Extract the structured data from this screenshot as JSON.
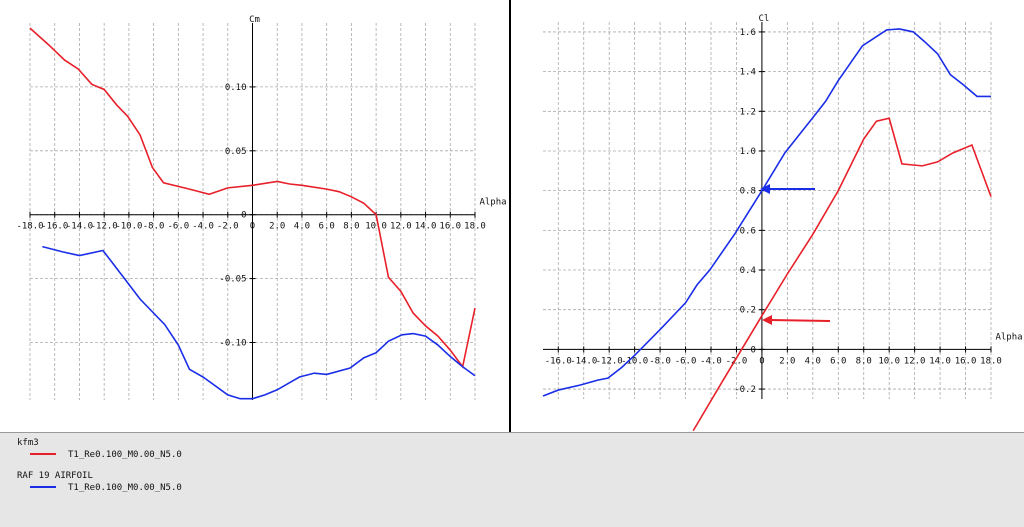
{
  "chart_data": [
    {
      "type": "line",
      "y_label": "Cm",
      "x_label": "Alpha",
      "xlim": [
        -18,
        18
      ],
      "ylim": [
        -0.145,
        0.15
      ],
      "grid": true,
      "xticks": [
        {
          "value": -18,
          "label": "-18.0"
        },
        {
          "value": -16,
          "label": "-16.0"
        },
        {
          "value": -14,
          "label": "-14.0"
        },
        {
          "value": -12,
          "label": "-12.0"
        },
        {
          "value": -10,
          "label": "-10.0"
        },
        {
          "value": -8,
          "label": "-8.0"
        },
        {
          "value": -6,
          "label": "-6.0"
        },
        {
          "value": -4,
          "label": "-4.0"
        },
        {
          "value": -2,
          "label": "-2.0"
        },
        0,
        {
          "value": 2,
          "label": "2.0"
        },
        {
          "value": 4,
          "label": "4.0"
        },
        {
          "value": 6,
          "label": "6.0"
        },
        {
          "value": 8,
          "label": "8.0"
        },
        {
          "value": 10,
          "label": "10.0"
        },
        {
          "value": 12,
          "label": "12.0"
        },
        {
          "value": 14,
          "label": "14.0"
        },
        {
          "value": 16,
          "label": "16.0"
        },
        {
          "value": 18,
          "label": "18.0"
        }
      ],
      "yticks": [
        {
          "value": 0.1,
          "label": "0.10"
        },
        0.05,
        0,
        -0.05,
        {
          "value": -0.1,
          "label": "-0.10"
        }
      ],
      "series": [
        {
          "name": "T1_Re0.100_M0.00_N5.0",
          "color": "#e8202a",
          "x": [
            -18,
            -16.5,
            -15.2,
            -14.1,
            -13,
            -12,
            -11,
            -10.1,
            -9.1,
            -8.1,
            -7.2,
            -5.1,
            -3.5,
            -2,
            0,
            2,
            3,
            4,
            6,
            7,
            8,
            9,
            10,
            11,
            12,
            13,
            14,
            15,
            16,
            17,
            18
          ],
          "values": [
            0.146,
            0.133,
            0.121,
            0.114,
            0.102,
            0.098,
            0.086,
            0.077,
            0.0625,
            0.037,
            0.025,
            0.02,
            0.016,
            0.021,
            0.023,
            0.026,
            0.024,
            0.023,
            0.02,
            0.018,
            0.014,
            0.009,
            0,
            -0.049,
            -0.06,
            -0.077,
            -0.087,
            -0.095,
            -0.106,
            -0.119,
            -0.073
          ]
        },
        {
          "name": "T1_Re0.100_M0.00_N5.0",
          "color": "#1a2ee8",
          "x": [
            -17,
            -15.4,
            -14,
            -12.1,
            -10.2,
            -9.1,
            -7.1,
            -6,
            -5.1,
            -4,
            -2,
            -1,
            0,
            1,
            2,
            3.8,
            5,
            6,
            7.9,
            9,
            10,
            11,
            12.1,
            13,
            14,
            15,
            16,
            17,
            18
          ],
          "values": [
            -0.025,
            -0.029,
            -0.032,
            -0.028,
            -0.052,
            -0.066,
            -0.086,
            -0.102,
            -0.121,
            -0.127,
            -0.141,
            -0.144,
            -0.144,
            -0.141,
            -0.137,
            -0.127,
            -0.124,
            -0.125,
            -0.12,
            -0.112,
            -0.108,
            -0.099,
            -0.094,
            -0.093,
            -0.095,
            -0.102,
            -0.111,
            -0.119,
            -0.126
          ]
        }
      ]
    },
    {
      "type": "line",
      "y_label": "Cl",
      "x_label": "Alpha",
      "xlim": [
        -17.2,
        18
      ],
      "ylim": [
        -0.25,
        1.65
      ],
      "grid": true,
      "xticks": [
        {
          "value": -16,
          "label": "-16.0"
        },
        {
          "value": -14,
          "label": "-14.0"
        },
        {
          "value": -12,
          "label": "-12.0"
        },
        {
          "value": -10,
          "label": "-10.0"
        },
        {
          "value": -8,
          "label": "-8.0"
        },
        {
          "value": -6,
          "label": "-6.0"
        },
        {
          "value": -4,
          "label": "-4.0"
        },
        {
          "value": -2,
          "label": "-2.0"
        },
        0,
        {
          "value": 2,
          "label": "2.0"
        },
        {
          "value": 4,
          "label": "4.0"
        },
        {
          "value": 6,
          "label": "6.0"
        },
        {
          "value": 8,
          "label": "8.0"
        },
        {
          "value": 10,
          "label": "10.0"
        },
        {
          "value": 12,
          "label": "12.0"
        },
        {
          "value": 14,
          "label": "14.0"
        },
        {
          "value": 16,
          "label": "16.0"
        },
        {
          "value": 18,
          "label": "18.0"
        }
      ],
      "yticks": [
        1.6,
        1.4,
        1.2,
        {
          "value": 1,
          "label": "1.0"
        },
        0.8,
        0.6,
        0.4,
        0.2,
        0,
        -0.2
      ],
      "series": [
        {
          "name": "T1_Re0.100_M0.00_N5.0",
          "color": "#e8202a",
          "x": [
            -5.4,
            -3,
            0,
            2,
            4,
            6,
            8,
            9,
            10,
            11,
            12.6,
            13.8,
            15,
            16.5,
            18
          ],
          "values": [
            -0.41,
            -0.15,
            0.17,
            0.38,
            0.58,
            0.8,
            1.06,
            1.15,
            1.165,
            0.935,
            0.925,
            0.945,
            0.99,
            1.03,
            0.77
          ]
        },
        {
          "name": "T1_Re0.100_M0.00_N5.0",
          "color": "#1a2ee8",
          "x": [
            -17.2,
            -16,
            -14.3,
            -12.9,
            -12.1,
            -11,
            -10,
            -8,
            -6,
            -5.1,
            -4.1,
            -2.1,
            0,
            1.8,
            3.9,
            5,
            6,
            7.9,
            9.8,
            10.8,
            11.9,
            12.8,
            13.8,
            14.8,
            15.8,
            16.9,
            18
          ],
          "values": [
            -0.235,
            -0.205,
            -0.18,
            -0.155,
            -0.145,
            -0.09,
            -0.03,
            0.1,
            0.235,
            0.325,
            0.4,
            0.585,
            0.8,
            0.99,
            1.16,
            1.25,
            1.355,
            1.53,
            1.61,
            1.615,
            1.6,
            1.55,
            1.49,
            1.385,
            1.335,
            1.275,
            1.275
          ]
        }
      ]
    }
  ],
  "legend_groups": [
    "kfm3",
    "RAF 19 AIRFOIL"
  ]
}
